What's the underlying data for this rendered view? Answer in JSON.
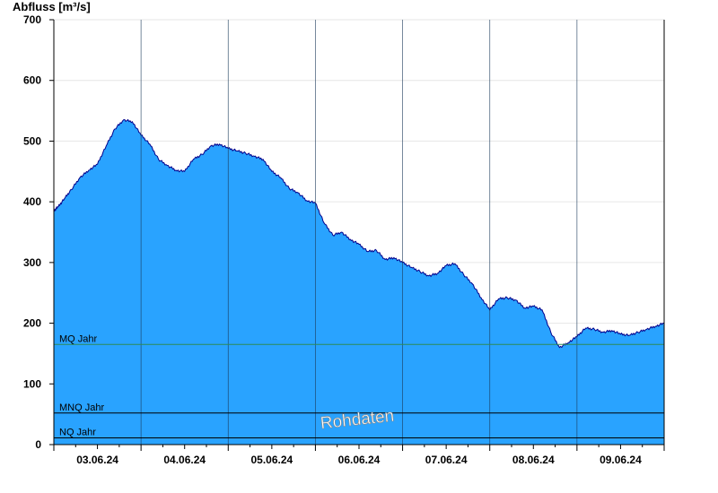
{
  "chart_data": {
    "type": "area",
    "title": "Abfluss [m³/s]",
    "xlabel": "",
    "ylabel": "Abfluss [m³/s]",
    "ylim": [
      0,
      700
    ],
    "yticks": [
      0,
      100,
      200,
      300,
      400,
      500,
      600,
      700
    ],
    "x_tick_labels": [
      "03.06.24",
      "04.06.24",
      "05.06.24",
      "06.06.24",
      "07.06.24",
      "08.06.24",
      "09.06.24"
    ],
    "x_range_days": [
      0,
      7
    ],
    "grid": true,
    "series": [
      {
        "name": "",
        "color": "#29a3ff",
        "line_color": "#00008b",
        "x_days": [
          0,
          0.05,
          0.12,
          0.2,
          0.3,
          0.4,
          0.5,
          0.6,
          0.7,
          0.8,
          0.9,
          1.0,
          1.1,
          1.2,
          1.3,
          1.4,
          1.5,
          1.6,
          1.7,
          1.8,
          1.9,
          2.0,
          2.1,
          2.2,
          2.3,
          2.4,
          2.5,
          2.6,
          2.7,
          2.8,
          2.9,
          3.0,
          3.1,
          3.2,
          3.3,
          3.4,
          3.5,
          3.6,
          3.7,
          3.8,
          3.9,
          4.0,
          4.1,
          4.2,
          4.3,
          4.4,
          4.5,
          4.6,
          4.7,
          4.8,
          4.9,
          5.0,
          5.1,
          5.2,
          5.3,
          5.4,
          5.5,
          5.6,
          5.7,
          5.8,
          5.9,
          6.0,
          6.1,
          6.2,
          6.3,
          6.4,
          6.5,
          6.6,
          6.7,
          6.8,
          6.9,
          7.0
        ],
        "values": [
          385,
          392,
          405,
          420,
          440,
          452,
          462,
          492,
          520,
          535,
          532,
          510,
          495,
          470,
          460,
          452,
          450,
          470,
          478,
          492,
          495,
          488,
          484,
          480,
          475,
          470,
          450,
          440,
          422,
          415,
          402,
          398,
          365,
          345,
          350,
          338,
          330,
          318,
          320,
          305,
          308,
          300,
          292,
          285,
          278,
          282,
          295,
          298,
          280,
          265,
          242,
          222,
          240,
          242,
          238,
          225,
          228,
          222,
          185,
          160,
          168,
          178,
          192,
          190,
          185,
          188,
          182,
          180,
          185,
          190,
          195,
          200
        ]
      }
    ],
    "reference_lines": [
      {
        "label": "MQ Jahr",
        "value": 165,
        "color": "#2e8b57"
      },
      {
        "label": "MNQ Jahr",
        "value": 52,
        "color": "#000000"
      },
      {
        "label": "NQ Jahr",
        "value": 11,
        "color": "#000000"
      }
    ],
    "annotations": [
      "Rohdaten"
    ]
  }
}
